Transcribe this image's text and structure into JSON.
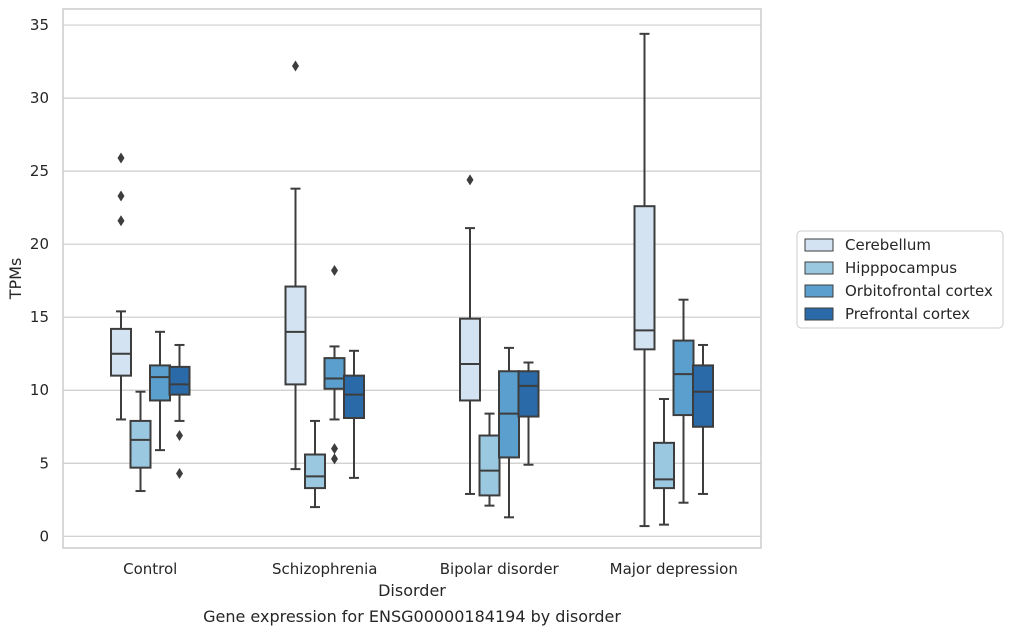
{
  "chart_data": {
    "type": "box",
    "title": "Gene expression for ENSG00000184194 by disorder",
    "xlabel": "Disorder",
    "ylabel": "TPMs",
    "ylim": [
      -0.8,
      36.1
    ],
    "yticks": [
      0,
      5,
      10,
      15,
      20,
      25,
      30,
      35
    ],
    "grid": "horizontal",
    "legend_position": "right",
    "categories": [
      "Control",
      "Schizophrenia",
      "Bipolar disorder",
      "Major depression"
    ],
    "series": [
      {
        "name": "Cerebellum",
        "color": "#d3e3f1",
        "boxes": [
          {
            "whisker_low": 8.0,
            "q1": 11.0,
            "median": 12.5,
            "q3": 14.2,
            "whisker_high": 15.4,
            "outliers": [
              21.6,
              23.3,
              25.9
            ]
          },
          {
            "whisker_low": 4.6,
            "q1": 10.4,
            "median": 14.0,
            "q3": 17.1,
            "whisker_high": 23.8,
            "outliers": [
              32.2
            ]
          },
          {
            "whisker_low": 2.9,
            "q1": 9.3,
            "median": 11.8,
            "q3": 14.9,
            "whisker_high": 21.1,
            "outliers": [
              24.4
            ]
          },
          {
            "whisker_low": 0.7,
            "q1": 12.8,
            "median": 14.1,
            "q3": 22.6,
            "whisker_high": 34.4,
            "outliers": []
          }
        ]
      },
      {
        "name": "Hipppocampus",
        "color": "#9ac8e0",
        "boxes": [
          {
            "whisker_low": 3.1,
            "q1": 4.7,
            "median": 6.6,
            "q3": 7.9,
            "whisker_high": 9.9,
            "outliers": []
          },
          {
            "whisker_low": 2.0,
            "q1": 3.3,
            "median": 4.1,
            "q3": 5.6,
            "whisker_high": 7.9,
            "outliers": []
          },
          {
            "whisker_low": 2.1,
            "q1": 2.8,
            "median": 4.5,
            "q3": 6.9,
            "whisker_high": 8.4,
            "outliers": []
          },
          {
            "whisker_low": 0.8,
            "q1": 3.3,
            "median": 3.9,
            "q3": 6.4,
            "whisker_high": 9.4,
            "outliers": []
          }
        ]
      },
      {
        "name": "Orbitofrontal cortex",
        "color": "#5a9fcd",
        "boxes": [
          {
            "whisker_low": 5.9,
            "q1": 9.3,
            "median": 10.9,
            "q3": 11.7,
            "whisker_high": 14.0,
            "outliers": []
          },
          {
            "whisker_low": 8.0,
            "q1": 10.1,
            "median": 10.8,
            "q3": 12.2,
            "whisker_high": 13.0,
            "outliers": [
              5.3,
              6.0,
              18.2
            ]
          },
          {
            "whisker_low": 1.3,
            "q1": 5.4,
            "median": 8.4,
            "q3": 11.3,
            "whisker_high": 12.9,
            "outliers": []
          },
          {
            "whisker_low": 2.3,
            "q1": 8.3,
            "median": 11.1,
            "q3": 13.4,
            "whisker_high": 16.2,
            "outliers": []
          }
        ]
      },
      {
        "name": "Prefrontal cortex",
        "color": "#2a6aa8",
        "boxes": [
          {
            "whisker_low": 7.9,
            "q1": 9.7,
            "median": 10.4,
            "q3": 11.6,
            "whisker_high": 13.1,
            "outliers": [
              4.3,
              6.9
            ]
          },
          {
            "whisker_low": 4.0,
            "q1": 8.1,
            "median": 9.7,
            "q3": 11.0,
            "whisker_high": 12.7,
            "outliers": []
          },
          {
            "whisker_low": 4.9,
            "q1": 8.2,
            "median": 10.3,
            "q3": 11.3,
            "whisker_high": 11.9,
            "outliers": []
          },
          {
            "whisker_low": 2.9,
            "q1": 7.5,
            "median": 9.9,
            "q3": 11.7,
            "whisker_high": 13.1,
            "outliers": []
          }
        ]
      }
    ]
  }
}
